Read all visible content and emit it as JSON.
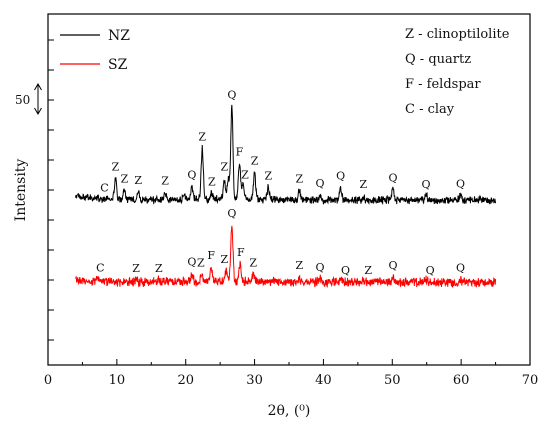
{
  "chart_data": {
    "type": "line",
    "xlabel": "2θ, (⁰)",
    "ylabel": "Intensity",
    "xlim": [
      0,
      70
    ],
    "xticks": [
      0,
      10,
      20,
      30,
      40,
      50,
      60,
      70
    ],
    "grid": false,
    "legend_placement": "top-left",
    "scale_bar": {
      "label": "50",
      "value": 50
    },
    "series": [
      {
        "name": "NZ",
        "color": "#000000",
        "baseline": 0,
        "peaks": [
          {
            "x": 9.8,
            "h": 35
          },
          {
            "x": 11.1,
            "h": 15
          },
          {
            "x": 13.1,
            "h": 13
          },
          {
            "x": 17.0,
            "h": 12
          },
          {
            "x": 19.8,
            "h": 10
          },
          {
            "x": 20.9,
            "h": 22
          },
          {
            "x": 22.4,
            "h": 85
          },
          {
            "x": 23.8,
            "h": 10
          },
          {
            "x": 25.6,
            "h": 30
          },
          {
            "x": 26.2,
            "h": 35
          },
          {
            "x": 26.7,
            "h": 155
          },
          {
            "x": 27.8,
            "h": 60
          },
          {
            "x": 28.3,
            "h": 22
          },
          {
            "x": 30.0,
            "h": 45
          },
          {
            "x": 32.0,
            "h": 20
          },
          {
            "x": 36.5,
            "h": 15
          },
          {
            "x": 39.5,
            "h": 8
          },
          {
            "x": 42.5,
            "h": 20
          },
          {
            "x": 45.8,
            "h": 6
          },
          {
            "x": 50.1,
            "h": 17
          },
          {
            "x": 54.9,
            "h": 6
          },
          {
            "x": 59.9,
            "h": 7
          }
        ],
        "labels": [
          {
            "text": "C",
            "x": 8.2
          },
          {
            "text": "Z",
            "x": 9.8
          },
          {
            "text": "Z",
            "x": 11.1
          },
          {
            "text": "Z",
            "x": 13.1
          },
          {
            "text": "Z",
            "x": 17.0
          },
          {
            "text": "Q",
            "x": 20.9
          },
          {
            "text": "Z",
            "x": 22.4
          },
          {
            "text": "Z",
            "x": 23.8
          },
          {
            "text": "Z",
            "x": 25.6
          },
          {
            "text": "Q",
            "x": 26.7
          },
          {
            "text": "F",
            "x": 27.8
          },
          {
            "text": "Z",
            "x": 28.6
          },
          {
            "text": "Z",
            "x": 30.0
          },
          {
            "text": "Z",
            "x": 32.0
          },
          {
            "text": "Z",
            "x": 36.5
          },
          {
            "text": "Q",
            "x": 39.5
          },
          {
            "text": "Q",
            "x": 42.5
          },
          {
            "text": "Z",
            "x": 45.8
          },
          {
            "text": "Q",
            "x": 50.1
          },
          {
            "text": "Q",
            "x": 54.9
          },
          {
            "text": "Q",
            "x": 59.9
          }
        ]
      },
      {
        "name": "SZ",
        "color": "#ff0000",
        "baseline": -137,
        "peaks": [
          {
            "x": 7.2,
            "h": 4
          },
          {
            "x": 12.8,
            "h": 3
          },
          {
            "x": 16.0,
            "h": 3
          },
          {
            "x": 20.9,
            "h": 14
          },
          {
            "x": 22.3,
            "h": 12
          },
          {
            "x": 23.7,
            "h": 25
          },
          {
            "x": 25.9,
            "h": 18
          },
          {
            "x": 26.7,
            "h": 95
          },
          {
            "x": 27.9,
            "h": 30
          },
          {
            "x": 29.8,
            "h": 12
          },
          {
            "x": 36.5,
            "h": 8
          },
          {
            "x": 39.5,
            "h": 5
          },
          {
            "x": 42.5,
            "h": 4
          },
          {
            "x": 45.8,
            "h": 4
          },
          {
            "x": 50.1,
            "h": 8
          },
          {
            "x": 54.9,
            "h": 3
          },
          {
            "x": 59.9,
            "h": 4
          }
        ],
        "labels": [
          {
            "text": "C",
            "x": 7.6
          },
          {
            "text": "Z",
            "x": 12.8
          },
          {
            "text": "Z",
            "x": 16.1
          },
          {
            "text": "Q",
            "x": 20.9
          },
          {
            "text": "Z",
            "x": 22.2
          },
          {
            "text": "F",
            "x": 23.7
          },
          {
            "text": "Z",
            "x": 25.6
          },
          {
            "text": "Q",
            "x": 26.7
          },
          {
            "text": "F",
            "x": 28.0
          },
          {
            "text": "Z",
            "x": 29.8
          },
          {
            "text": "Z",
            "x": 36.5
          },
          {
            "text": "Q",
            "x": 39.5
          },
          {
            "text": "Q",
            "x": 43.2
          },
          {
            "text": "Z",
            "x": 46.5
          },
          {
            "text": "Q",
            "x": 50.1
          },
          {
            "text": "Q",
            "x": 55.5
          },
          {
            "text": "Q",
            "x": 59.9
          }
        ]
      }
    ],
    "key": [
      {
        "letter": "Z",
        "meaning": "Z - clinoptilolite"
      },
      {
        "letter": "Q",
        "meaning": "Q - quartz"
      },
      {
        "letter": "F",
        "meaning": "F - feldspar"
      },
      {
        "letter": "C",
        "meaning": "C - clay"
      }
    ]
  }
}
